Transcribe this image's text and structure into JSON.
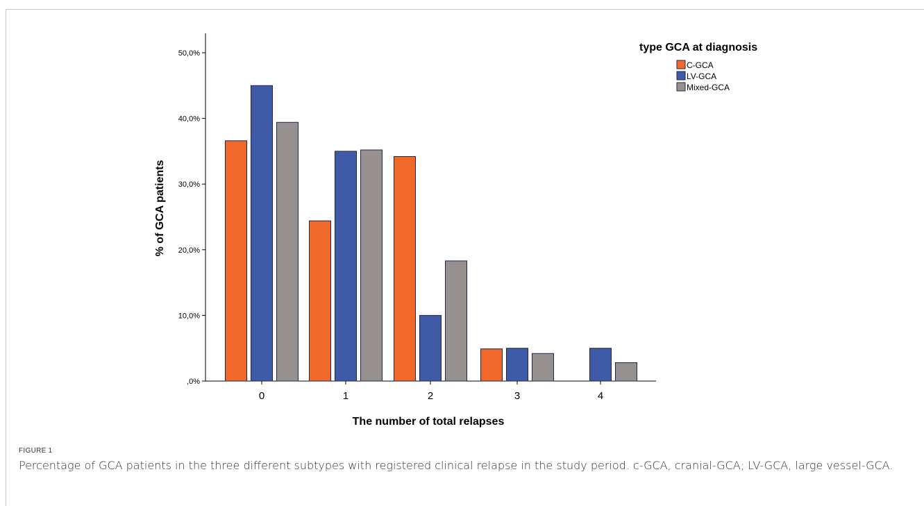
{
  "figure": {
    "label": "FIGURE 1",
    "caption": "Percentage of GCA patients in the three different subtypes with registered clinical relapse in the study period. c-GCA, cranial-GCA; LV-GCA, large vessel-GCA."
  },
  "colors": {
    "C-GCA": "#f0682a",
    "LV-GCA": "#3f5ba7",
    "Mixed-GCA": "#979090",
    "bar_outline": "#23264a"
  },
  "chart_data": {
    "type": "bar",
    "title": "",
    "xlabel": "The number of total relapses",
    "ylabel": "% of GCA patients",
    "categories": [
      "0",
      "1",
      "2",
      "3",
      "4"
    ],
    "ylim": [
      0,
      50
    ],
    "yticks": [
      0,
      10,
      20,
      30,
      40,
      50
    ],
    "ytick_labels": [
      ",0%",
      "10,0%",
      "20,0%",
      "30,0%",
      "40,0%",
      "50,0%"
    ],
    "legend_title": "type GCA at diagnosis",
    "legend_position": "top-right",
    "grid": false,
    "series": [
      {
        "name": "C-GCA",
        "values": [
          36.6,
          24.4,
          34.2,
          4.9,
          0
        ]
      },
      {
        "name": "LV-GCA",
        "values": [
          45.0,
          35.0,
          10.0,
          5.0,
          5.0
        ]
      },
      {
        "name": "Mixed-GCA",
        "values": [
          39.4,
          35.2,
          18.3,
          4.2,
          2.8
        ]
      }
    ]
  }
}
